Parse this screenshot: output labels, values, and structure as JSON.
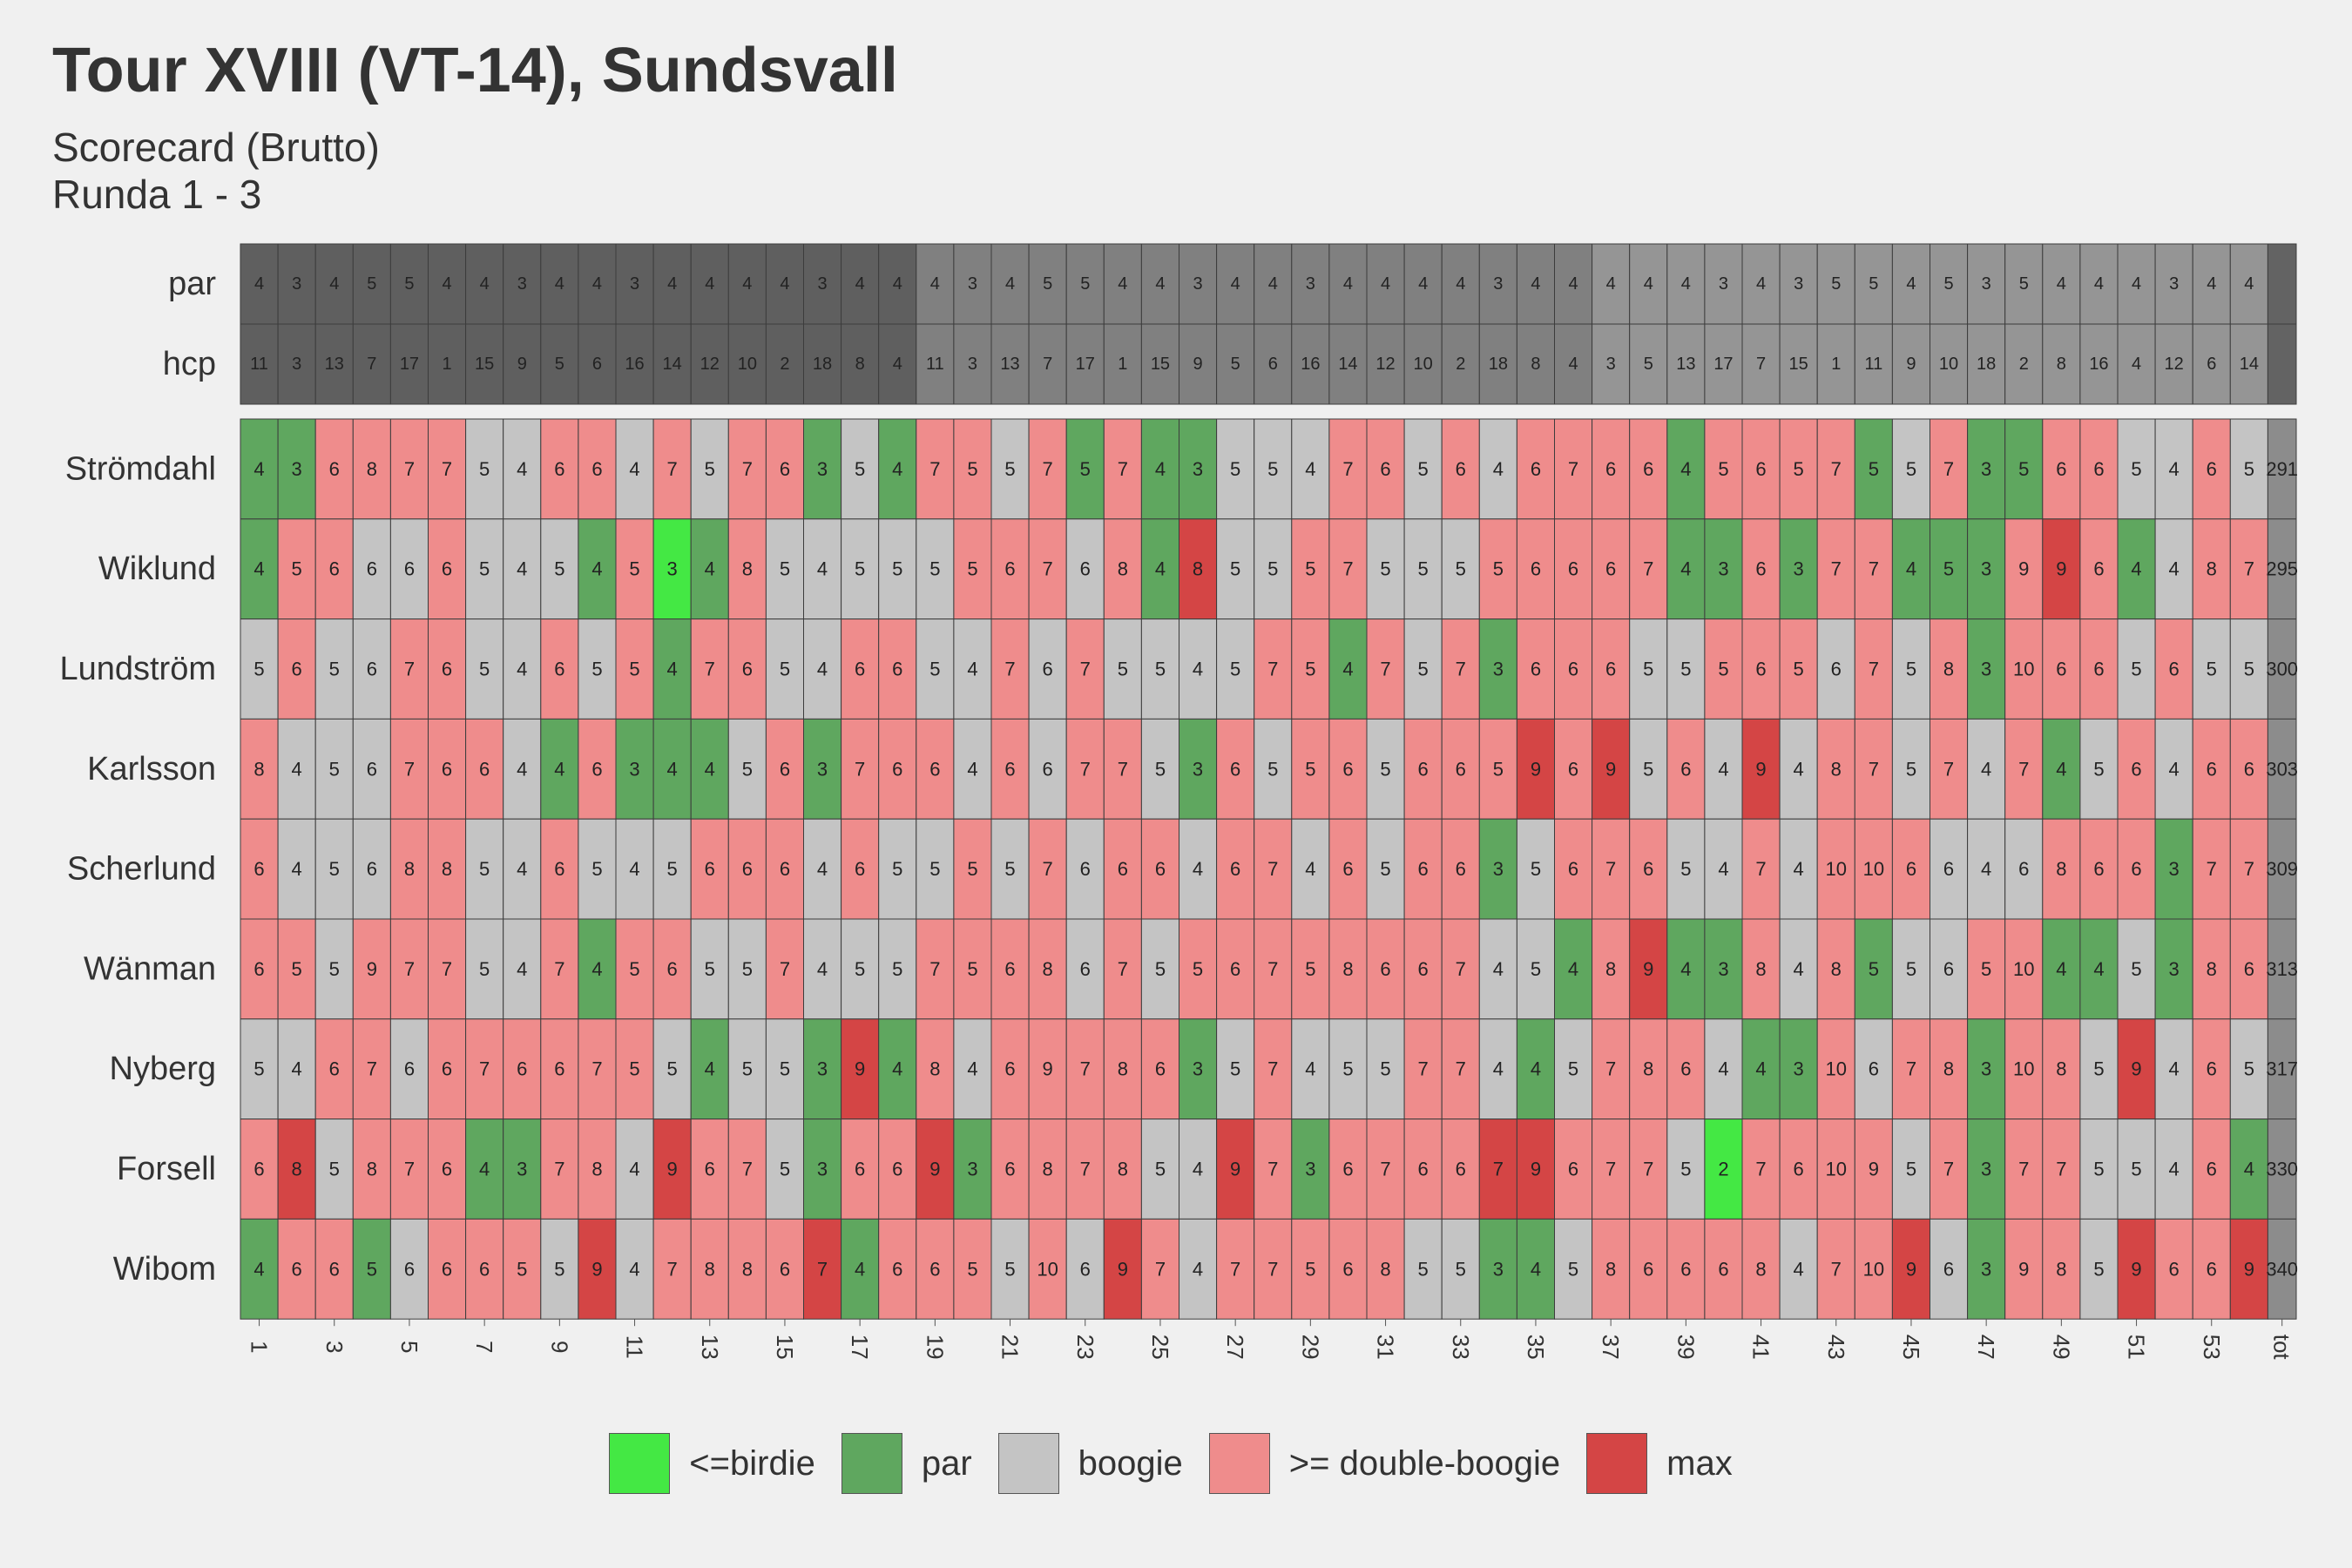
{
  "chart_data": {
    "type": "heatmap",
    "title": "Tour XVIII (VT-14), Sundsvall",
    "subtitle": [
      "Scorecard (Brutto)",
      "Runda 1 - 3"
    ],
    "x_tick_labels": [
      "1",
      "3",
      "5",
      "7",
      "9",
      "11",
      "13",
      "15",
      "17",
      "19",
      "21",
      "23",
      "25",
      "27",
      "29",
      "31",
      "33",
      "35",
      "37",
      "39",
      "41",
      "43",
      "45",
      "47",
      "49",
      "51",
      "53",
      "tot"
    ],
    "par_label": "par",
    "hcp_label": "hcp",
    "par": [
      4,
      3,
      4,
      5,
      5,
      4,
      4,
      3,
      4,
      4,
      3,
      4,
      4,
      4,
      4,
      3,
      4,
      4,
      4,
      3,
      4,
      5,
      5,
      4,
      4,
      3,
      4,
      4,
      3,
      4,
      4,
      4,
      4,
      3,
      4,
      4,
      4,
      4,
      4,
      3,
      4,
      3,
      5,
      5,
      4,
      5,
      3,
      5,
      4,
      4,
      4,
      3,
      4,
      4
    ],
    "hcp": [
      11,
      3,
      13,
      7,
      17,
      1,
      15,
      9,
      5,
      6,
      16,
      14,
      12,
      10,
      2,
      18,
      8,
      4,
      11,
      3,
      13,
      7,
      17,
      1,
      15,
      9,
      5,
      6,
      16,
      14,
      12,
      10,
      2,
      18,
      8,
      4,
      3,
      5,
      13,
      17,
      7,
      15,
      1,
      11,
      9,
      10,
      18,
      2,
      8,
      16,
      4,
      12,
      6,
      14
    ],
    "players": [
      {
        "name": "Strömdahl",
        "total": 291,
        "scores": [
          4,
          3,
          6,
          8,
          7,
          7,
          5,
          4,
          6,
          6,
          4,
          7,
          5,
          7,
          6,
          3,
          5,
          4,
          7,
          5,
          5,
          7,
          5,
          7,
          4,
          3,
          5,
          5,
          4,
          7,
          6,
          5,
          6,
          4,
          6,
          7,
          6,
          6,
          4,
          5,
          6,
          5,
          7,
          5,
          5,
          7,
          3,
          5,
          6,
          6,
          5,
          4,
          6,
          5
        ]
      },
      {
        "name": "Wiklund",
        "total": 295,
        "scores": [
          4,
          5,
          6,
          6,
          6,
          6,
          5,
          4,
          5,
          4,
          5,
          3,
          4,
          8,
          5,
          4,
          5,
          5,
          5,
          5,
          6,
          7,
          6,
          8,
          4,
          8,
          5,
          5,
          5,
          7,
          5,
          5,
          5,
          5,
          6,
          6,
          6,
          7,
          4,
          3,
          6,
          3,
          7,
          7,
          4,
          5,
          3,
          9,
          9,
          6,
          4,
          4,
          8,
          7
        ]
      },
      {
        "name": "Lundström",
        "total": 300,
        "scores": [
          5,
          6,
          5,
          6,
          7,
          6,
          5,
          4,
          6,
          5,
          5,
          4,
          7,
          6,
          5,
          4,
          6,
          6,
          5,
          4,
          7,
          6,
          7,
          5,
          5,
          4,
          5,
          7,
          5,
          4,
          7,
          5,
          7,
          3,
          6,
          6,
          6,
          5,
          5,
          5,
          6,
          5,
          6,
          7,
          5,
          8,
          3,
          10,
          6,
          6,
          5,
          6,
          5,
          5
        ]
      },
      {
        "name": "Karlsson",
        "total": 303,
        "scores": [
          8,
          4,
          5,
          6,
          7,
          6,
          6,
          4,
          4,
          6,
          3,
          4,
          4,
          5,
          6,
          3,
          7,
          6,
          6,
          4,
          6,
          6,
          7,
          7,
          5,
          3,
          6,
          5,
          5,
          6,
          5,
          6,
          6,
          5,
          9,
          6,
          9,
          5,
          6,
          4,
          9,
          4,
          8,
          7,
          5,
          7,
          4,
          7,
          4,
          5,
          6,
          4,
          6,
          6
        ]
      },
      {
        "name": "Scherlund",
        "total": 309,
        "scores": [
          6,
          4,
          5,
          6,
          8,
          8,
          5,
          4,
          6,
          5,
          4,
          5,
          6,
          6,
          6,
          4,
          6,
          5,
          5,
          5,
          5,
          7,
          6,
          6,
          6,
          4,
          6,
          7,
          4,
          6,
          5,
          6,
          6,
          3,
          5,
          6,
          7,
          6,
          5,
          4,
          7,
          4,
          10,
          10,
          6,
          6,
          4,
          6,
          8,
          6,
          6,
          3,
          7,
          7
        ]
      },
      {
        "name": "Wänman",
        "total": 313,
        "scores": [
          6,
          5,
          5,
          9,
          7,
          7,
          5,
          4,
          7,
          4,
          5,
          6,
          5,
          5,
          7,
          4,
          5,
          5,
          7,
          5,
          6,
          8,
          6,
          7,
          5,
          5,
          6,
          7,
          5,
          8,
          6,
          6,
          7,
          4,
          5,
          4,
          8,
          9,
          4,
          3,
          8,
          4,
          8,
          5,
          5,
          6,
          5,
          10,
          4,
          4,
          5,
          3,
          8,
          6
        ]
      },
      {
        "name": "Nyberg",
        "total": 317,
        "scores": [
          5,
          4,
          6,
          7,
          6,
          6,
          7,
          6,
          6,
          7,
          5,
          5,
          4,
          5,
          5,
          3,
          9,
          4,
          8,
          4,
          6,
          9,
          7,
          8,
          6,
          3,
          5,
          7,
          4,
          5,
          5,
          7,
          7,
          4,
          4,
          5,
          7,
          8,
          6,
          4,
          4,
          3,
          10,
          6,
          7,
          8,
          3,
          10,
          8,
          5,
          9,
          4,
          6,
          5
        ]
      },
      {
        "name": "Forsell",
        "total": 330,
        "scores": [
          6,
          8,
          5,
          8,
          7,
          6,
          4,
          3,
          7,
          8,
          4,
          9,
          6,
          7,
          5,
          3,
          6,
          6,
          9,
          3,
          6,
          8,
          7,
          8,
          5,
          4,
          9,
          7,
          3,
          6,
          7,
          6,
          6,
          7,
          9,
          6,
          7,
          7,
          5,
          2,
          7,
          6,
          10,
          9,
          5,
          7,
          3,
          7,
          7,
          5,
          5,
          4,
          6,
          4
        ]
      },
      {
        "name": "Wibom",
        "total": 340,
        "scores": [
          4,
          6,
          6,
          5,
          6,
          6,
          6,
          5,
          5,
          9,
          4,
          7,
          8,
          8,
          6,
          7,
          4,
          6,
          6,
          5,
          5,
          10,
          6,
          9,
          7,
          4,
          7,
          7,
          5,
          6,
          8,
          5,
          5,
          3,
          4,
          5,
          8,
          6,
          6,
          6,
          8,
          4,
          7,
          10,
          9,
          6,
          3,
          9,
          8,
          5,
          9,
          6,
          6,
          9
        ]
      }
    ],
    "legend": [
      {
        "label": "<=birdie",
        "color": "#44e844"
      },
      {
        "label": "par",
        "color": "#5fa75f"
      },
      {
        "label": "boogie",
        "color": "#c4c4c4"
      },
      {
        "label": ">= double-boogie",
        "color": "#ef8c8c"
      },
      {
        "label": "max",
        "color": "#d44545"
      }
    ],
    "header_colors": [
      "#5f5f5f",
      "#808080",
      "#959595"
    ],
    "total_color": "#8c8c8c"
  }
}
